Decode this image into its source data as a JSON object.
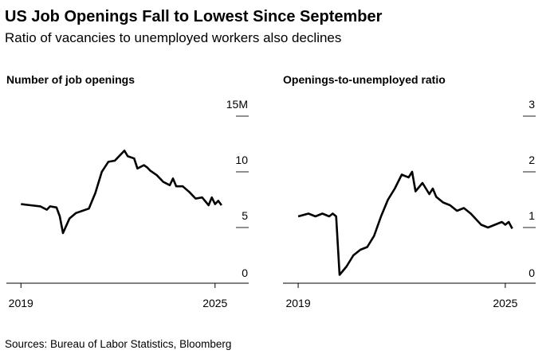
{
  "title": "US Job Openings Fall to Lowest Since September",
  "subtitle": "Ratio of vacancies to unemployed workers also declines",
  "source": "Sources: Bureau of Labor Statistics, Bloomberg",
  "chart_data": [
    {
      "type": "line",
      "title": "Number of job openings",
      "x": [
        2019.0,
        2019.3,
        2019.6,
        2019.8,
        2019.9,
        2020.1,
        2020.2,
        2020.3,
        2020.5,
        2020.7,
        2020.9,
        2021.1,
        2021.3,
        2021.5,
        2021.7,
        2021.9,
        2022.0,
        2022.2,
        2022.3,
        2022.5,
        2022.6,
        2022.8,
        2022.9,
        2023.0,
        2023.2,
        2023.4,
        2023.6,
        2023.7,
        2023.8,
        2024.0,
        2024.2,
        2024.4,
        2024.6,
        2024.8,
        2024.9,
        2025.0,
        2025.1,
        2025.2
      ],
      "series": [
        {
          "name": "Job openings",
          "color": "#000000",
          "values": [
            7.1,
            7.0,
            6.9,
            6.6,
            6.9,
            6.8,
            6.0,
            4.5,
            5.8,
            6.3,
            6.5,
            6.7,
            8.1,
            10.0,
            10.9,
            11.0,
            11.3,
            11.9,
            11.4,
            11.2,
            10.3,
            10.6,
            10.4,
            10.1,
            9.7,
            9.1,
            8.8,
            9.4,
            8.7,
            8.7,
            8.2,
            7.6,
            7.7,
            7.0,
            7.7,
            7.1,
            7.4,
            7.0
          ]
        }
      ],
      "xlim": [
        2018.55,
        2026.04
      ],
      "xticks": [
        2019,
        2025
      ],
      "ylim": [
        0,
        15
      ],
      "yticks": [
        0,
        5,
        10,
        {
          "value": 15,
          "label": "15M"
        }
      ]
    },
    {
      "type": "line",
      "title": "Openings-to-unemployed ratio",
      "x": [
        2019.0,
        2019.3,
        2019.5,
        2019.7,
        2019.9,
        2020.0,
        2020.1,
        2020.2,
        2020.4,
        2020.6,
        2020.8,
        2021.0,
        2021.2,
        2021.4,
        2021.6,
        2021.8,
        2022.0,
        2022.2,
        2022.3,
        2022.4,
        2022.6,
        2022.8,
        2022.9,
        2023.0,
        2023.2,
        2023.4,
        2023.6,
        2023.8,
        2024.0,
        2024.3,
        2024.5,
        2024.7,
        2024.9,
        2025.0,
        2025.1,
        2025.2
      ],
      "series": [
        {
          "name": "Ratio",
          "color": "#000000",
          "values": [
            1.2,
            1.25,
            1.2,
            1.25,
            1.2,
            1.25,
            1.2,
            0.15,
            0.3,
            0.5,
            0.6,
            0.65,
            0.85,
            1.2,
            1.5,
            1.7,
            1.95,
            1.9,
            2.0,
            1.65,
            1.8,
            1.6,
            1.7,
            1.55,
            1.45,
            1.4,
            1.3,
            1.35,
            1.25,
            1.05,
            1.0,
            1.05,
            1.1,
            1.05,
            1.1,
            0.98
          ]
        }
      ],
      "xlim": [
        2018.56,
        2025.88
      ],
      "xticks": [
        2019,
        2025
      ],
      "ylim": [
        0,
        3
      ],
      "yticks": [
        0,
        1,
        2,
        3
      ]
    }
  ]
}
